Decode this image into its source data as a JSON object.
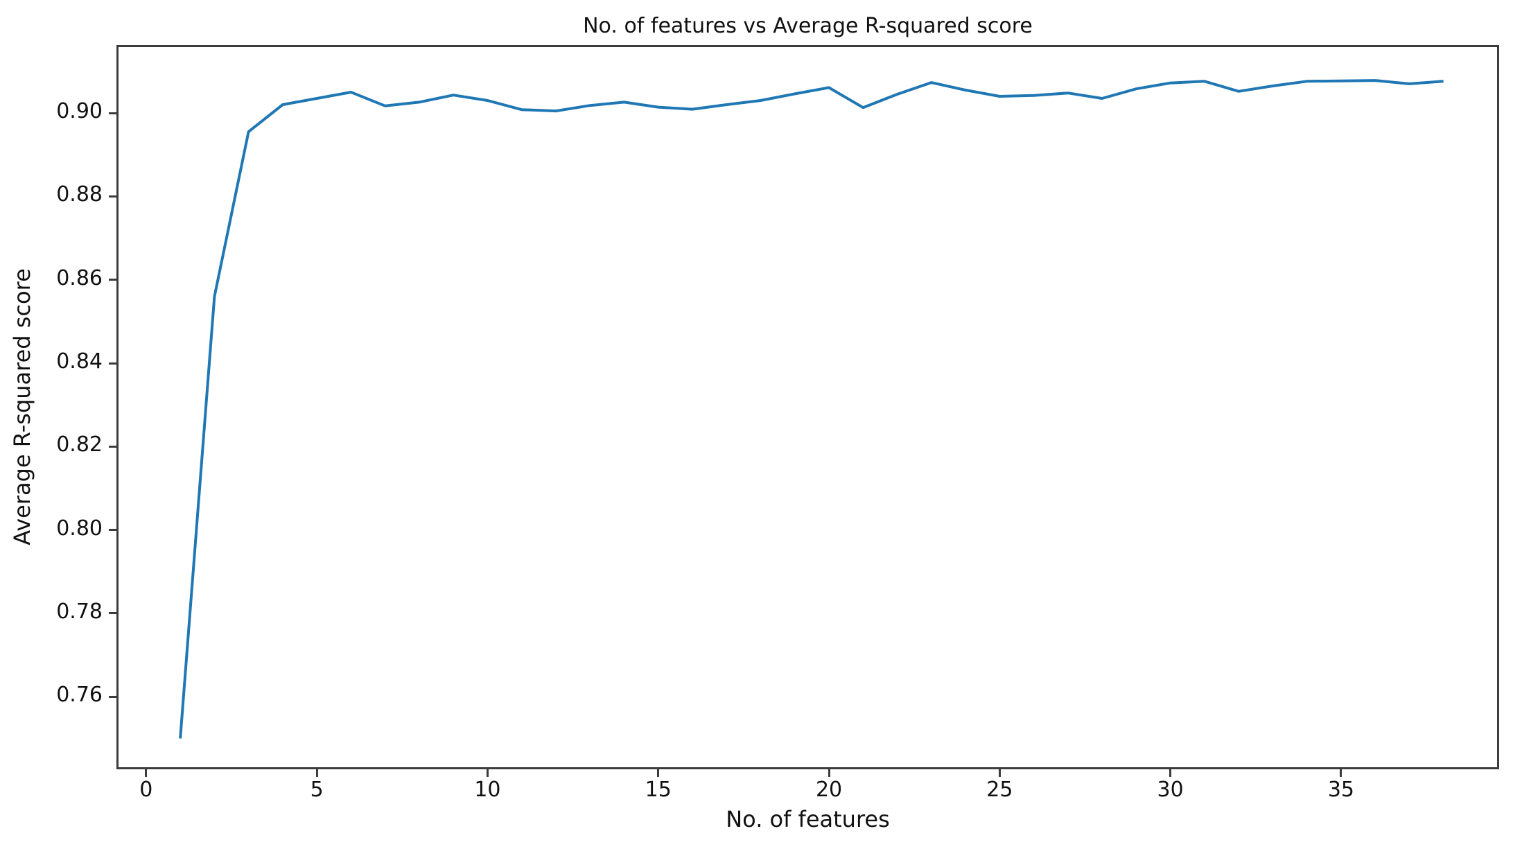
{
  "figure": {
    "title": "No. of features vs Average R-squared score",
    "xlabel": "No. of features",
    "ylabel": "Average R-squared score"
  },
  "chart_data": {
    "type": "line",
    "title": "No. of features vs Average R-squared score",
    "xlabel": "No. of features",
    "ylabel": "Average R-squared score",
    "line_color": "#1f77b4",
    "background_color": "#ffffff",
    "grid": false,
    "legend": null,
    "xlim": [
      -0.87,
      39.63
    ],
    "ylim": [
      0.7426,
      0.9163
    ],
    "xticks": [
      0,
      5,
      10,
      15,
      20,
      25,
      30,
      35
    ],
    "xtick_labels": [
      "0",
      "5",
      "10",
      "15",
      "20",
      "25",
      "30",
      "35"
    ],
    "yticks": [
      0.76,
      0.78,
      0.8,
      0.82,
      0.84,
      0.86,
      0.88,
      0.9
    ],
    "ytick_labels": [
      "0.76",
      "0.78",
      "0.80",
      "0.82",
      "0.84",
      "0.86",
      "0.88",
      "0.90"
    ],
    "x": [
      1,
      2,
      3,
      4,
      5,
      6,
      7,
      8,
      9,
      10,
      11,
      12,
      13,
      14,
      15,
      16,
      17,
      18,
      19,
      20,
      21,
      22,
      23,
      24,
      25,
      26,
      27,
      28,
      29,
      30,
      31,
      32,
      33,
      34,
      35,
      36,
      37,
      38
    ],
    "series": [
      {
        "name": "Average R-squared score",
        "values": [
          0.75,
          0.856,
          0.8955,
          0.902,
          0.9035,
          0.905,
          0.9017,
          0.9026,
          0.9043,
          0.903,
          0.9008,
          0.9005,
          0.9018,
          0.9026,
          0.9014,
          0.9009,
          0.902,
          0.903,
          0.9046,
          0.9061,
          0.9013,
          0.9045,
          0.9073,
          0.9055,
          0.904,
          0.9042,
          0.9048,
          0.9035,
          0.9058,
          0.9072,
          0.9076,
          0.9052,
          0.9065,
          0.9076,
          0.9077,
          0.9078,
          0.907,
          0.9076
        ]
      }
    ]
  }
}
